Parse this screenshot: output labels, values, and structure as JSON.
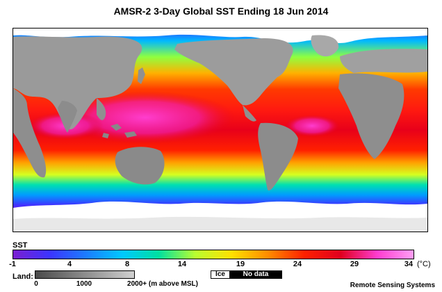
{
  "title": "AMSR-2 3-Day Global SST Ending 18 Jun 2014",
  "sst_label": "SST",
  "colorbar": {
    "ticks": [
      "-1",
      "4",
      "8",
      "14",
      "19",
      "24",
      "29",
      "34"
    ],
    "unit": "(°C)",
    "colors": [
      "#7a1fd0",
      "#3c34ff",
      "#1c7cff",
      "#00c8ff",
      "#00e0a0",
      "#b8ff30",
      "#ffe000",
      "#ff8c00",
      "#ff2000",
      "#e0001e",
      "#ff3ccf",
      "#ff9ff5"
    ]
  },
  "land": {
    "label": "Land:",
    "ticks": [
      "0",
      "1000",
      "2000+ (m above MSL)"
    ]
  },
  "ice_label": "Ice",
  "nodata_label": "No data",
  "credit": "Remote Sensing Systems"
}
